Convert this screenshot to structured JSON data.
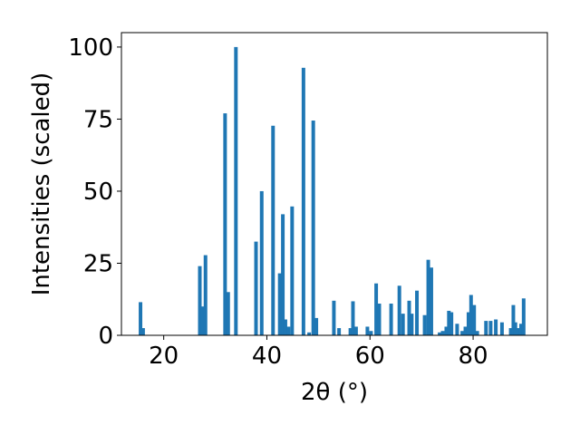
{
  "chart_data": {
    "type": "bar",
    "title": "",
    "xlabel": "2θ (°)",
    "ylabel": "Intensities (scaled)",
    "xlim": [
      11.8,
      94.4
    ],
    "ylim": [
      0,
      105
    ],
    "xticks": [
      20,
      40,
      60,
      80
    ],
    "yticks": [
      0,
      25,
      50,
      75,
      100
    ],
    "grid": false,
    "color": "#1f77b4",
    "bar_width": 0.7,
    "x": [
      15.5,
      16.0,
      27.0,
      27.6,
      28.1,
      31.9,
      32.5,
      34.0,
      37.9,
      39.0,
      41.2,
      42.5,
      43.1,
      43.6,
      44.2,
      44.9,
      47.1,
      48.2,
      49.0,
      49.6,
      53.0,
      54.0,
      56.2,
      56.7,
      57.3,
      59.5,
      60.2,
      61.2,
      61.8,
      64.1,
      65.7,
      66.4,
      67.6,
      68.1,
      69.1,
      70.6,
      71.3,
      71.9,
      73.5,
      74.1,
      74.8,
      75.3,
      75.8,
      76.9,
      77.9,
      78.5,
      79.1,
      79.6,
      80.2,
      80.8,
      82.5,
      83.4,
      84.4,
      85.6,
      87.3,
      87.8,
      88.2,
      88.8,
      89.3,
      89.8
    ],
    "values": [
      11.5,
      2.5,
      24.0,
      10.0,
      27.8,
      77.0,
      15.0,
      100.0,
      32.5,
      50.0,
      72.7,
      21.5,
      42.0,
      5.5,
      3.0,
      44.7,
      92.8,
      1.0,
      74.5,
      6.0,
      12.0,
      2.5,
      2.5,
      11.8,
      3.0,
      3.0,
      1.5,
      18.0,
      11.0,
      11.0,
      17.2,
      7.5,
      12.0,
      7.5,
      15.5,
      7.0,
      26.2,
      23.5,
      1.0,
      1.5,
      3.0,
      8.5,
      8.0,
      4.0,
      1.5,
      3.0,
      8.0,
      14.0,
      10.5,
      1.5,
      5.0,
      5.0,
      5.5,
      4.5,
      2.5,
      10.5,
      4.5,
      2.5,
      4.0,
      12.8
    ]
  }
}
